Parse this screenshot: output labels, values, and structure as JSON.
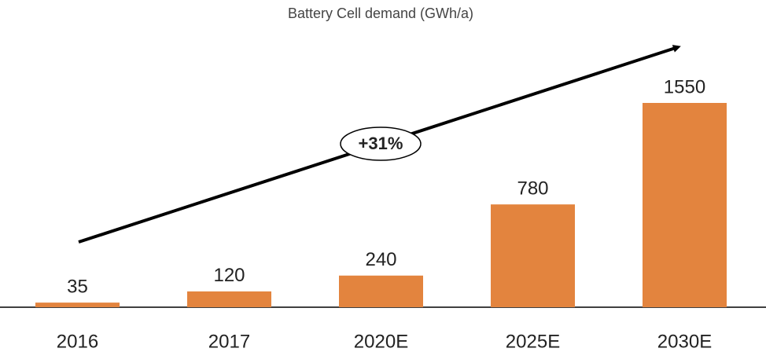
{
  "chart_data": {
    "type": "bar",
    "title": "Battery Cell demand (GWh/a)",
    "categories": [
      "2016",
      "2017",
      "2020E",
      "2025E",
      "2030E"
    ],
    "values": [
      35,
      120,
      240,
      780,
      1550
    ],
    "color": "#e3843e",
    "annotation": "+31%"
  }
}
